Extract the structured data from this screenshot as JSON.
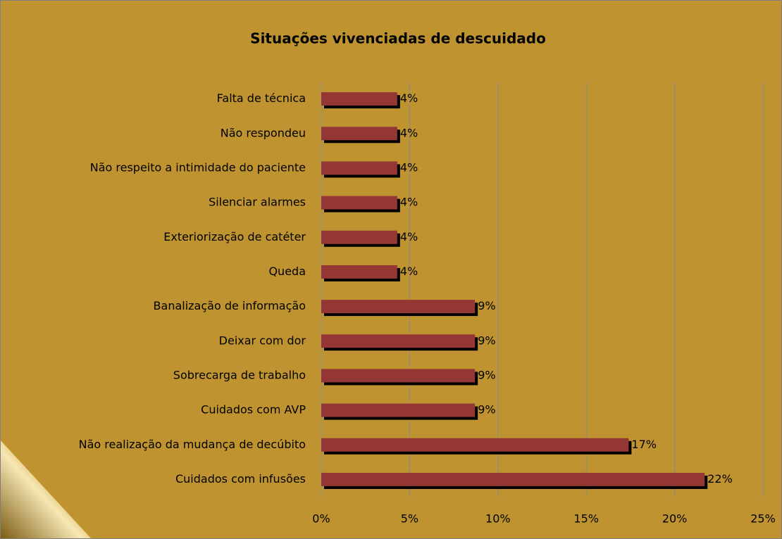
{
  "chart_data": {
    "type": "bar",
    "orientation": "horizontal",
    "title": "Situações vivenciadas de descuidado",
    "categories": [
      "Falta de técnica",
      "Não respondeu",
      "Não respeito a intimidade do paciente",
      "Silenciar alarmes",
      "Exteriorização de catéter",
      "Queda",
      "Banalização de informação",
      "Deixar com dor",
      "Sobrecarga de trabalho",
      "Cuidados com AVP",
      "Não realização da mudança de decúbito",
      "Cuidados com infusões"
    ],
    "values": [
      4.3,
      4.3,
      4.3,
      4.3,
      4.3,
      4.3,
      8.7,
      8.7,
      8.7,
      8.7,
      17.4,
      21.7
    ],
    "value_labels": [
      "4%",
      "4%",
      "4%",
      "4%",
      "4%",
      "4%",
      "9%",
      "9%",
      "9%",
      "9%",
      "17%",
      "22%"
    ],
    "color": "#943634",
    "xlim": [
      0,
      25
    ],
    "xticks": [
      {
        "value": 0,
        "label": "0%"
      },
      {
        "value": 5,
        "label": "5%"
      },
      {
        "value": 10,
        "label": "10%"
      },
      {
        "value": 15,
        "label": "15%"
      },
      {
        "value": 20,
        "label": "20%"
      },
      {
        "value": 25,
        "label": "25%"
      }
    ],
    "grid": true
  }
}
